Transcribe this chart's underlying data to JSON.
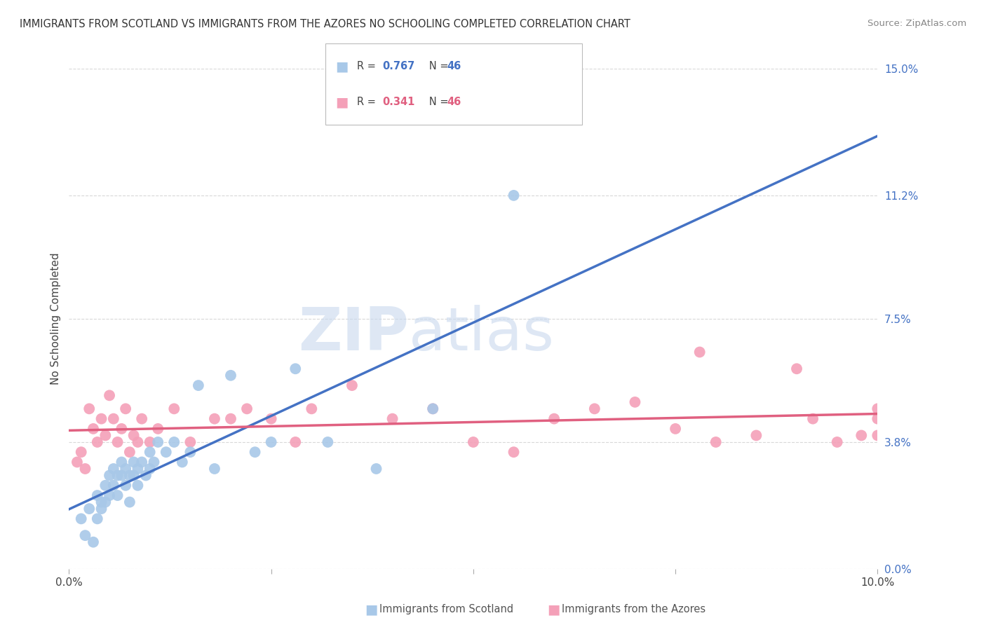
{
  "title": "IMMIGRANTS FROM SCOTLAND VS IMMIGRANTS FROM THE AZORES NO SCHOOLING COMPLETED CORRELATION CHART",
  "source": "Source: ZipAtlas.com",
  "ylabel": "No Schooling Completed",
  "xlim": [
    0.0,
    10.0
  ],
  "ylim": [
    0.0,
    15.0
  ],
  "ytick_values": [
    0.0,
    3.8,
    7.5,
    11.2,
    15.0
  ],
  "background_color": "#ffffff",
  "grid_color": "#d8d8d8",
  "scotland_color": "#a8c8e8",
  "azores_color": "#f4a0b8",
  "scotland_line_color": "#4472c4",
  "azores_line_color": "#e06080",
  "scotland_R": 0.767,
  "scotland_N": 46,
  "azores_R": 0.341,
  "azores_N": 46,
  "scotland_scatter_x": [
    0.15,
    0.2,
    0.25,
    0.3,
    0.35,
    0.35,
    0.4,
    0.4,
    0.45,
    0.45,
    0.5,
    0.5,
    0.55,
    0.55,
    0.6,
    0.6,
    0.65,
    0.65,
    0.7,
    0.7,
    0.75,
    0.75,
    0.8,
    0.8,
    0.85,
    0.85,
    0.9,
    0.95,
    1.0,
    1.0,
    1.05,
    1.1,
    1.2,
    1.3,
    1.4,
    1.5,
    1.6,
    1.8,
    2.0,
    2.3,
    2.5,
    2.8,
    3.2,
    3.8,
    4.5,
    5.5
  ],
  "scotland_scatter_y": [
    1.5,
    1.0,
    1.8,
    0.8,
    2.2,
    1.5,
    2.0,
    1.8,
    2.5,
    2.0,
    2.8,
    2.2,
    3.0,
    2.5,
    2.8,
    2.2,
    3.2,
    2.8,
    3.0,
    2.5,
    2.8,
    2.0,
    3.2,
    2.8,
    3.0,
    2.5,
    3.2,
    2.8,
    3.5,
    3.0,
    3.2,
    3.8,
    3.5,
    3.8,
    3.2,
    3.5,
    5.5,
    3.0,
    5.8,
    3.5,
    3.8,
    6.0,
    3.8,
    3.0,
    4.8,
    11.2
  ],
  "azores_scatter_x": [
    0.1,
    0.15,
    0.2,
    0.25,
    0.3,
    0.35,
    0.4,
    0.45,
    0.5,
    0.55,
    0.6,
    0.65,
    0.7,
    0.75,
    0.8,
    0.85,
    0.9,
    1.0,
    1.1,
    1.3,
    1.5,
    1.8,
    2.0,
    2.2,
    2.5,
    2.8,
    3.0,
    3.5,
    4.0,
    4.5,
    5.0,
    5.5,
    6.0,
    6.5,
    7.0,
    7.5,
    7.8,
    8.0,
    8.5,
    9.0,
    9.2,
    9.5,
    9.8,
    10.0,
    10.0,
    10.0
  ],
  "azores_scatter_y": [
    3.2,
    3.5,
    3.0,
    4.8,
    4.2,
    3.8,
    4.5,
    4.0,
    5.2,
    4.5,
    3.8,
    4.2,
    4.8,
    3.5,
    4.0,
    3.8,
    4.5,
    3.8,
    4.2,
    4.8,
    3.8,
    4.5,
    4.5,
    4.8,
    4.5,
    3.8,
    4.8,
    5.5,
    4.5,
    4.8,
    3.8,
    3.5,
    4.5,
    4.8,
    5.0,
    4.2,
    6.5,
    3.8,
    4.0,
    6.0,
    4.5,
    3.8,
    4.0,
    4.5,
    4.0,
    4.8
  ]
}
